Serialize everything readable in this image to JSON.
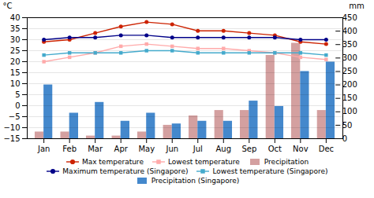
{
  "chart_data": {
    "type": "combo",
    "categories": [
      "Jan",
      "Feb",
      "Mar",
      "Apr",
      "May",
      "Jun",
      "Jul",
      "Aug",
      "Sep",
      "Oct",
      "Nov",
      "Dec"
    ],
    "ylabel": "°C",
    "y2label": "mm",
    "ylim": [
      -15,
      40
    ],
    "yticks": [
      -15,
      -10,
      -5,
      0,
      5,
      10,
      15,
      20,
      25,
      30,
      35,
      40
    ],
    "y2lim": [
      0,
      450
    ],
    "y2ticks": [
      0,
      50,
      100,
      150,
      200,
      250,
      300,
      350,
      400,
      450
    ],
    "grid": true,
    "series": [
      {
        "name": "Max temperature",
        "type": "line",
        "color": "#cc2200",
        "marker": "circle",
        "values": [
          29,
          30,
          33,
          36,
          38,
          37,
          34,
          34,
          33,
          32,
          29,
          28
        ]
      },
      {
        "name": "Lowest temperature",
        "type": "line",
        "color": "#ffaaaa",
        "marker": "square",
        "values": [
          20,
          22,
          24,
          27,
          28,
          27,
          26,
          26,
          25,
          24,
          22,
          21
        ]
      },
      {
        "name": "Precipitation",
        "type": "bar",
        "axis": "y2",
        "color": "#d4a0a0",
        "values": [
          25,
          25,
          10,
          10,
          25,
          50,
          85,
          105,
          105,
          310,
          355,
          105
        ]
      },
      {
        "name": "Maximum temperature (Singapore)",
        "type": "line",
        "color": "#000088",
        "marker": "circle",
        "values": [
          30,
          31,
          31,
          32,
          32,
          31,
          31,
          31,
          31,
          31,
          30,
          30
        ]
      },
      {
        "name": "Lowest temperature (Singapore)",
        "type": "line",
        "color": "#44aacc",
        "marker": "square",
        "values": [
          23,
          24,
          24,
          24,
          25,
          25,
          24,
          24,
          24,
          24,
          24,
          23
        ]
      },
      {
        "name": "Precipitation (Singapore)",
        "type": "bar",
        "axis": "y2",
        "color": "#4488cc",
        "values": [
          200,
          95,
          135,
          65,
          95,
          55,
          65,
          65,
          140,
          120,
          250,
          285
        ]
      }
    ]
  }
}
